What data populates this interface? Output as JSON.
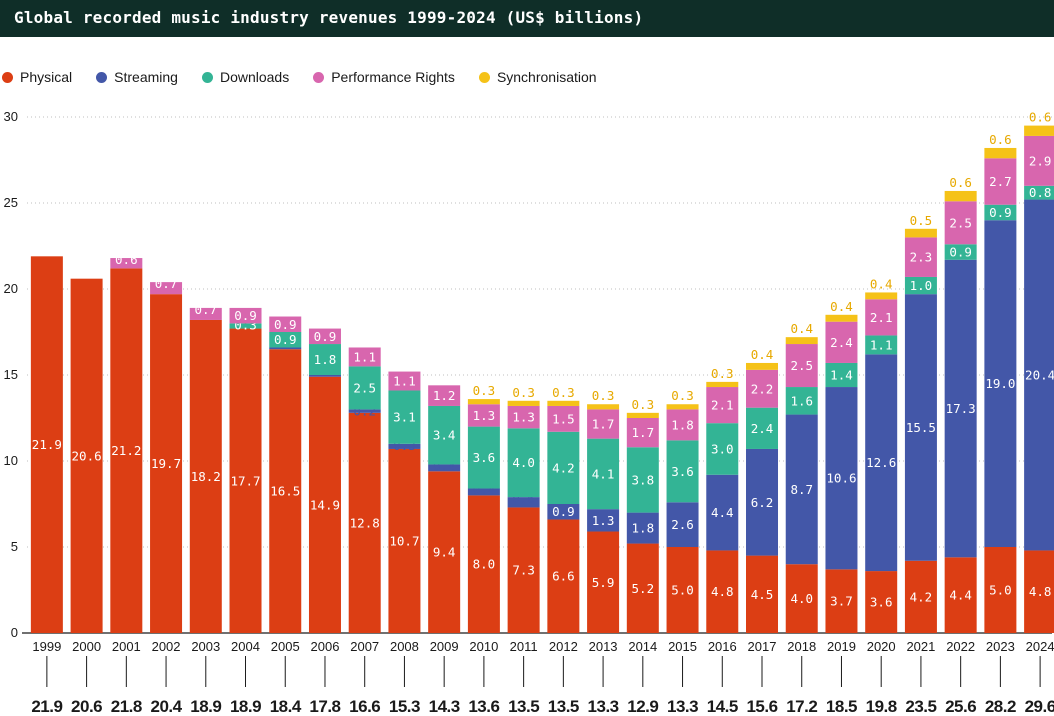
{
  "title": "Global recorded music industry revenues 1999-2024 (US$ billions)",
  "legend": {
    "items": [
      {
        "label": "Physical",
        "color": "#dc3e14"
      },
      {
        "label": "Streaming",
        "color": "#4357a8"
      },
      {
        "label": "Downloads",
        "color": "#33b495"
      },
      {
        "label": "Performance Rights",
        "color": "#d866ae"
      },
      {
        "label": "Synchronisation",
        "color": "#f5c218"
      }
    ]
  },
  "chart_data": {
    "type": "bar",
    "stacked": true,
    "title": "Global recorded music industry revenues 1999-2024 (US$ billions)",
    "categories": [
      "1999",
      "2000",
      "2001",
      "2002",
      "2003",
      "2004",
      "2005",
      "2006",
      "2007",
      "2008",
      "2009",
      "2010",
      "2011",
      "2012",
      "2013",
      "2014",
      "2015",
      "2016",
      "2017",
      "2018",
      "2019",
      "2020",
      "2021",
      "2022",
      "2023",
      "2024"
    ],
    "series": [
      {
        "name": "Physical",
        "color": "#dc3e14",
        "values": [
          21.9,
          20.6,
          21.2,
          19.7,
          18.2,
          17.7,
          16.5,
          14.9,
          12.8,
          10.7,
          9.4,
          8.0,
          7.3,
          6.6,
          5.9,
          5.2,
          5.0,
          4.8,
          4.5,
          4.0,
          3.7,
          3.6,
          4.2,
          4.4,
          5.0,
          4.8
        ]
      },
      {
        "name": "Streaming",
        "color": "#4357a8",
        "values": [
          null,
          null,
          null,
          null,
          null,
          0.0,
          0.1,
          0.1,
          0.2,
          0.3,
          0.4,
          0.4,
          0.6,
          0.9,
          1.3,
          1.8,
          2.6,
          4.4,
          6.2,
          8.7,
          10.6,
          12.6,
          15.5,
          17.3,
          19.0,
          20.4
        ]
      },
      {
        "name": "Downloads",
        "color": "#33b495",
        "values": [
          null,
          null,
          null,
          null,
          null,
          0.3,
          0.9,
          1.8,
          2.5,
          3.1,
          3.4,
          3.6,
          4.0,
          4.2,
          4.1,
          3.8,
          3.6,
          3.0,
          2.4,
          1.6,
          1.4,
          1.1,
          1.0,
          0.9,
          0.9,
          0.8
        ]
      },
      {
        "name": "Performance Rights",
        "color": "#d866ae",
        "values": [
          null,
          null,
          0.6,
          0.7,
          0.7,
          0.9,
          0.9,
          0.9,
          1.1,
          1.1,
          1.2,
          1.3,
          1.3,
          1.5,
          1.7,
          1.7,
          1.8,
          2.1,
          2.2,
          2.5,
          2.4,
          2.1,
          2.3,
          2.5,
          2.7,
          2.9
        ]
      },
      {
        "name": "Synchronisation",
        "color": "#f5c218",
        "values": [
          null,
          null,
          null,
          null,
          null,
          null,
          null,
          null,
          null,
          null,
          null,
          0.3,
          0.3,
          0.3,
          0.3,
          0.3,
          0.3,
          0.3,
          0.4,
          0.4,
          0.4,
          0.4,
          0.5,
          0.6,
          0.6,
          0.6
        ]
      }
    ],
    "totals": [
      "21.9",
      "20.6",
      "21.8",
      "20.4",
      "18.9",
      "18.9",
      "18.4",
      "17.8",
      "16.6",
      "15.3",
      "14.3",
      "13.6",
      "13.5",
      "13.5",
      "13.3",
      "12.9",
      "13.3",
      "14.5",
      "15.6",
      "17.2",
      "18.5",
      "19.8",
      "23.5",
      "25.6",
      "28.2",
      "29.6"
    ],
    "ylim": [
      0,
      30
    ],
    "yticks": [
      0,
      5,
      10,
      15,
      20,
      25,
      30
    ],
    "grid": true,
    "xlabel": "",
    "ylabel": ""
  }
}
